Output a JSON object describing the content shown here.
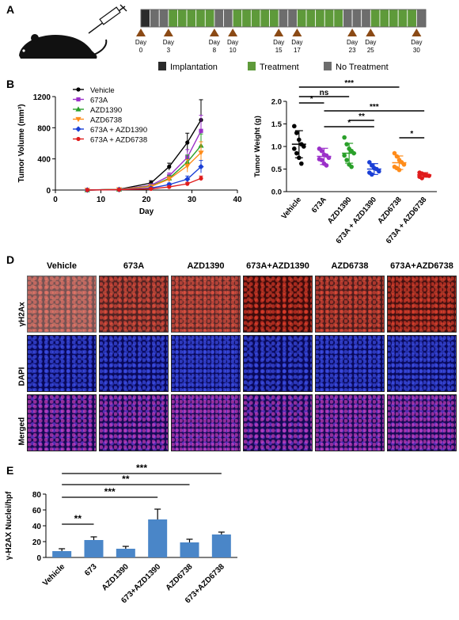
{
  "panels": {
    "a": "A",
    "b": "B",
    "d": "D",
    "e": "E"
  },
  "timeline": {
    "days": [
      "0",
      "3",
      "8",
      "10",
      "15",
      "17",
      "23",
      "25",
      "30"
    ],
    "day_prefix": "Day",
    "legend": [
      {
        "label": "Implantation",
        "color": "#2b2b2b"
      },
      {
        "label": "Treatment",
        "color": "#5e9a3a"
      },
      {
        "label": "No Treatment",
        "color": "#6d6d6d"
      }
    ]
  },
  "chart_data": [
    {
      "type": "line",
      "xlabel": "Day",
      "ylabel": "Tumor Volume (mm³)",
      "xlim": [
        0,
        40
      ],
      "ylim": [
        0,
        1200
      ],
      "x_ticks": [
        "0",
        "10",
        "20",
        "30",
        "40"
      ],
      "y_ticks": [
        "0",
        "400",
        "800",
        "1200"
      ],
      "legend_position": "top-left",
      "x": [
        7,
        14,
        21,
        25,
        29,
        32
      ],
      "series": [
        {
          "name": "Vehicle",
          "color": "#000000",
          "marker": "circle",
          "values": [
            0,
            10,
            90,
            300,
            610,
            900
          ],
          "err": [
            0,
            5,
            30,
            45,
            120,
            260
          ]
        },
        {
          "name": "673A",
          "color": "#9b30c9",
          "marker": "square",
          "values": [
            0,
            8,
            60,
            180,
            420,
            760
          ],
          "err": [
            0,
            4,
            20,
            40,
            100,
            200
          ]
        },
        {
          "name": "AZD1390",
          "color": "#2aa02a",
          "marker": "triangle",
          "values": [
            0,
            8,
            50,
            150,
            360,
            570
          ],
          "err": [
            0,
            4,
            15,
            35,
            90,
            150
          ]
        },
        {
          "name": "AZD6738",
          "color": "#ff8c1a",
          "marker": "triangle-down",
          "values": [
            0,
            8,
            45,
            140,
            310,
            480
          ],
          "err": [
            0,
            4,
            15,
            30,
            80,
            140
          ]
        },
        {
          "name": "673A + AZD1390",
          "color": "#1a3fd6",
          "marker": "diamond",
          "values": [
            0,
            5,
            25,
            70,
            140,
            300
          ],
          "err": [
            0,
            3,
            10,
            20,
            40,
            80
          ]
        },
        {
          "name": "673A + AZD6738",
          "color": "#e01c1c",
          "marker": "circle",
          "values": [
            0,
            4,
            15,
            40,
            80,
            150
          ],
          "err": [
            0,
            2,
            6,
            12,
            20,
            30
          ]
        }
      ]
    },
    {
      "type": "scatter",
      "ylabel": "Tumor Weight (g)",
      "ylim": [
        0.0,
        2.0
      ],
      "y_ticks": [
        "0.0",
        "0.5",
        "1.0",
        "1.5",
        "2.0"
      ],
      "categories": [
        "Vehicle",
        "673A",
        "AZD1390",
        "673A + AZD1390",
        "AZD6738",
        "673A + AZD6738"
      ],
      "colors": [
        "#000000",
        "#9b30c9",
        "#2aa02a",
        "#1a3fd6",
        "#ff8c1a",
        "#e01c1c"
      ],
      "means": [
        1.05,
        0.78,
        0.85,
        0.5,
        0.64,
        0.37
      ],
      "sd": [
        0.3,
        0.18,
        0.22,
        0.12,
        0.15,
        0.05
      ],
      "points": [
        [
          1.45,
          1.3,
          1.15,
          1.05,
          1.0,
          0.95,
          0.85,
          0.75,
          0.62
        ],
        [
          0.95,
          0.9,
          0.82,
          0.8,
          0.75,
          0.72,
          0.7,
          0.62,
          0.58
        ],
        [
          1.2,
          1.05,
          0.95,
          0.9,
          0.85,
          0.8,
          0.7,
          0.6,
          0.55
        ],
        [
          0.65,
          0.58,
          0.52,
          0.5,
          0.45,
          0.42,
          0.38
        ],
        [
          0.85,
          0.78,
          0.7,
          0.65,
          0.6,
          0.55,
          0.52,
          0.48
        ],
        [
          0.42,
          0.4,
          0.38,
          0.36,
          0.35,
          0.33,
          0.3
        ]
      ],
      "significance": [
        {
          "from": 0,
          "to": 1,
          "label": "*"
        },
        {
          "from": 0,
          "to": 2,
          "label": "ns"
        },
        {
          "from": 0,
          "to": 4,
          "label": "***"
        },
        {
          "from": 1,
          "to": 5,
          "label": "***"
        },
        {
          "from": 2,
          "to": 3,
          "label": "**"
        },
        {
          "from": 1,
          "to": 3,
          "label": "*"
        },
        {
          "from": 4,
          "to": 5,
          "label": "*"
        }
      ]
    },
    {
      "type": "bar",
      "ylabel": "γ-H2AX Nuclei/hpf",
      "ylim": [
        0,
        80
      ],
      "y_ticks": [
        "0",
        "20",
        "40",
        "60",
        "80"
      ],
      "categories": [
        "Vehicle",
        "673",
        "AZD1390",
        "673+AZD1390",
        "AZD6738",
        "673+AZD6738"
      ],
      "values": [
        8,
        22,
        11,
        48,
        19,
        29
      ],
      "err": [
        3,
        4,
        3,
        13,
        4,
        3
      ],
      "bar_color": "#4a86c8",
      "significance": [
        {
          "from": 0,
          "to": 1,
          "label": "**"
        },
        {
          "from": 0,
          "to": 3,
          "label": "***"
        },
        {
          "from": 0,
          "to": 4,
          "label": "**"
        },
        {
          "from": 0,
          "to": 5,
          "label": "***"
        }
      ]
    }
  ],
  "micrographs": {
    "columns": [
      "Vehicle",
      "673A",
      "AZD1390",
      "673A+AZD1390",
      "AZD6738",
      "673A+AZD6738"
    ],
    "rows": [
      "γH2Ax",
      "DAPI",
      "Merged"
    ]
  }
}
